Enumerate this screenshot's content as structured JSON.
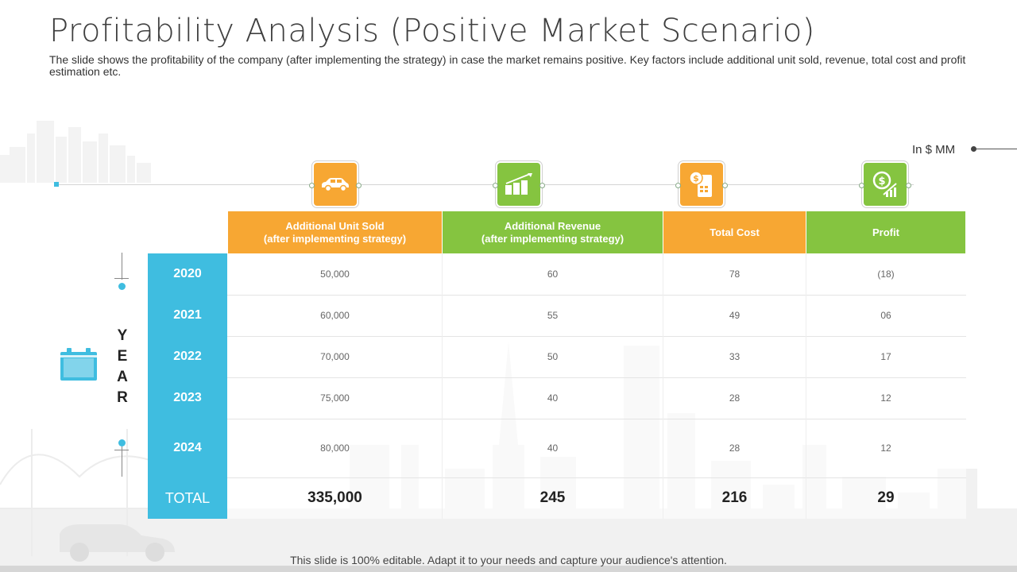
{
  "title": "Profitability Analysis (Positive Market Scenario)",
  "subtitle": "The slide shows the profitability of the company (after implementing the strategy) in case the market remains positive. Key factors include additional unit sold, revenue, total cost and profit estimation etc.",
  "unit_label": "In $ MM",
  "year_axis_label": [
    "Y",
    "E",
    "A",
    "R"
  ],
  "icons": [
    "car-icon",
    "revenue-chart-icon",
    "cost-calculator-icon",
    "profit-growth-icon"
  ],
  "columns": [
    {
      "line1": "Additional Unit Sold",
      "line2": "(after implementing strategy)",
      "color": "#f7a733"
    },
    {
      "line1": "Additional Revenue",
      "line2": "(after implementing strategy)",
      "color": "#85c440"
    },
    {
      "line1": "Total Cost",
      "line2": "",
      "color": "#f7a733"
    },
    {
      "line1": "Profit",
      "line2": "",
      "color": "#85c440"
    }
  ],
  "rows": [
    {
      "year": "2020",
      "values": [
        "50,000",
        "60",
        "78",
        "(18)"
      ]
    },
    {
      "year": "2021",
      "values": [
        "60,000",
        "55",
        "49",
        "06"
      ]
    },
    {
      "year": "2022",
      "values": [
        "70,000",
        "50",
        "33",
        "17"
      ]
    },
    {
      "year": "2023",
      "values": [
        "75,000",
        "40",
        "28",
        "12"
      ]
    },
    {
      "year": "2024",
      "values": [
        "80,000",
        "40",
        "28",
        "12"
      ]
    }
  ],
  "total": {
    "label": "TOTAL",
    "values": [
      "335,000",
      "245",
      "216",
      "29"
    ]
  },
  "footer": "This slide is 100% editable. Adapt it to your needs and capture your audience's attention.",
  "colors": {
    "orange": "#f7a733",
    "green": "#85c440",
    "blue": "#3fbde0"
  }
}
